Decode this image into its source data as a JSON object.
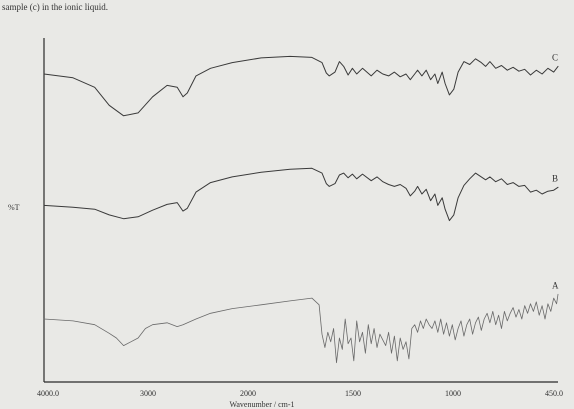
{
  "header_text": "sample (c) in the ionic liquid.",
  "chart_data": {
    "type": "line",
    "title": "",
    "xlabel": "Wavenumber / cm-1",
    "ylabel": "%T",
    "xlim": [
      4000,
      450
    ],
    "x_tick_labels": [
      "4000.0",
      "3000",
      "2000",
      "1500",
      "1000",
      "450.0"
    ],
    "grid": false,
    "series": [
      {
        "name": "C",
        "color": "#3a3a3a",
        "points": [
          [
            4000,
            0.8
          ],
          [
            3800,
            0.76
          ],
          [
            3650,
            0.66
          ],
          [
            3550,
            0.47
          ],
          [
            3450,
            0.36
          ],
          [
            3350,
            0.39
          ],
          [
            3250,
            0.56
          ],
          [
            3150,
            0.68
          ],
          [
            3080,
            0.66
          ],
          [
            3040,
            0.56
          ],
          [
            3010,
            0.6
          ],
          [
            2950,
            0.78
          ],
          [
            2850,
            0.86
          ],
          [
            2700,
            0.92
          ],
          [
            2500,
            0.97
          ],
          [
            2300,
            0.985
          ],
          [
            2150,
            0.975
          ],
          [
            2080,
            0.92
          ],
          [
            2050,
            0.81
          ],
          [
            2030,
            0.78
          ],
          [
            1990,
            0.82
          ],
          [
            1960,
            0.93
          ],
          [
            1930,
            0.88
          ],
          [
            1900,
            0.79
          ],
          [
            1870,
            0.86
          ],
          [
            1840,
            0.8
          ],
          [
            1800,
            0.86
          ],
          [
            1740,
            0.78
          ],
          [
            1700,
            0.84
          ],
          [
            1660,
            0.8
          ],
          [
            1620,
            0.78
          ],
          [
            1580,
            0.82
          ],
          [
            1540,
            0.77
          ],
          [
            1500,
            0.8
          ],
          [
            1470,
            0.74
          ],
          [
            1440,
            0.8
          ],
          [
            1420,
            0.84
          ],
          [
            1390,
            0.78
          ],
          [
            1360,
            0.84
          ],
          [
            1330,
            0.74
          ],
          [
            1300,
            0.8
          ],
          [
            1280,
            0.7
          ],
          [
            1250,
            0.82
          ],
          [
            1230,
            0.7
          ],
          [
            1200,
            0.58
          ],
          [
            1170,
            0.64
          ],
          [
            1140,
            0.82
          ],
          [
            1100,
            0.93
          ],
          [
            1060,
            0.9
          ],
          [
            1020,
            0.96
          ],
          [
            980,
            0.92
          ],
          [
            950,
            0.88
          ],
          [
            920,
            0.93
          ],
          [
            880,
            0.86
          ],
          [
            840,
            0.89
          ],
          [
            800,
            0.84
          ],
          [
            760,
            0.87
          ],
          [
            720,
            0.83
          ],
          [
            680,
            0.85
          ],
          [
            640,
            0.79
          ],
          [
            600,
            0.84
          ],
          [
            560,
            0.8
          ],
          [
            520,
            0.86
          ],
          [
            480,
            0.82
          ],
          [
            450,
            0.88
          ]
        ]
      },
      {
        "name": "B",
        "color": "#3a3a3a",
        "points": [
          [
            4000,
            0.28
          ],
          [
            3800,
            0.26
          ],
          [
            3650,
            0.24
          ],
          [
            3550,
            0.18
          ],
          [
            3450,
            0.14
          ],
          [
            3350,
            0.16
          ],
          [
            3250,
            0.23
          ],
          [
            3150,
            0.29
          ],
          [
            3080,
            0.31
          ],
          [
            3040,
            0.22
          ],
          [
            3010,
            0.25
          ],
          [
            2950,
            0.42
          ],
          [
            2850,
            0.52
          ],
          [
            2700,
            0.58
          ],
          [
            2500,
            0.63
          ],
          [
            2300,
            0.66
          ],
          [
            2150,
            0.67
          ],
          [
            2080,
            0.62
          ],
          [
            2050,
            0.51
          ],
          [
            2030,
            0.48
          ],
          [
            1990,
            0.51
          ],
          [
            1960,
            0.6
          ],
          [
            1930,
            0.62
          ],
          [
            1900,
            0.57
          ],
          [
            1870,
            0.61
          ],
          [
            1840,
            0.56
          ],
          [
            1800,
            0.61
          ],
          [
            1740,
            0.54
          ],
          [
            1700,
            0.58
          ],
          [
            1660,
            0.53
          ],
          [
            1620,
            0.5
          ],
          [
            1580,
            0.48
          ],
          [
            1540,
            0.5
          ],
          [
            1500,
            0.46
          ],
          [
            1470,
            0.38
          ],
          [
            1440,
            0.43
          ],
          [
            1420,
            0.48
          ],
          [
            1390,
            0.4
          ],
          [
            1360,
            0.45
          ],
          [
            1330,
            0.33
          ],
          [
            1300,
            0.4
          ],
          [
            1280,
            0.28
          ],
          [
            1250,
            0.36
          ],
          [
            1230,
            0.24
          ],
          [
            1200,
            0.12
          ],
          [
            1170,
            0.18
          ],
          [
            1140,
            0.36
          ],
          [
            1100,
            0.49
          ],
          [
            1060,
            0.56
          ],
          [
            1020,
            0.62
          ],
          [
            980,
            0.58
          ],
          [
            950,
            0.55
          ],
          [
            920,
            0.58
          ],
          [
            880,
            0.53
          ],
          [
            840,
            0.56
          ],
          [
            800,
            0.5
          ],
          [
            760,
            0.52
          ],
          [
            720,
            0.48
          ],
          [
            680,
            0.49
          ],
          [
            640,
            0.42
          ],
          [
            600,
            0.44
          ],
          [
            560,
            0.4
          ],
          [
            520,
            0.43
          ],
          [
            480,
            0.44
          ],
          [
            450,
            0.47
          ]
        ]
      },
      {
        "name": "A",
        "color": "#6a6a6a",
        "points": [
          [
            4000,
            -0.2
          ],
          [
            3800,
            -0.22
          ],
          [
            3650,
            -0.26
          ],
          [
            3550,
            -0.35
          ],
          [
            3500,
            -0.4
          ],
          [
            3450,
            -0.48
          ],
          [
            3400,
            -0.44
          ],
          [
            3350,
            -0.4
          ],
          [
            3300,
            -0.3
          ],
          [
            3250,
            -0.26
          ],
          [
            3150,
            -0.24
          ],
          [
            3080,
            -0.28
          ],
          [
            3040,
            -0.26
          ],
          [
            2950,
            -0.2
          ],
          [
            2850,
            -0.14
          ],
          [
            2700,
            -0.09
          ],
          [
            2500,
            -0.05
          ],
          [
            2300,
            -0.01
          ],
          [
            2150,
            0.02
          ],
          [
            2100,
            -0.05
          ],
          [
            2080,
            -0.36
          ],
          [
            2060,
            -0.5
          ],
          [
            2040,
            -0.34
          ],
          [
            2020,
            -0.44
          ],
          [
            2000,
            -0.3
          ],
          [
            1980,
            -0.66
          ],
          [
            1960,
            -0.4
          ],
          [
            1940,
            -0.52
          ],
          [
            1920,
            -0.2
          ],
          [
            1900,
            -0.46
          ],
          [
            1880,
            -0.4
          ],
          [
            1860,
            -0.64
          ],
          [
            1840,
            -0.22
          ],
          [
            1820,
            -0.44
          ],
          [
            1800,
            -0.34
          ],
          [
            1780,
            -0.56
          ],
          [
            1760,
            -0.26
          ],
          [
            1740,
            -0.46
          ],
          [
            1720,
            -0.3
          ],
          [
            1700,
            -0.5
          ],
          [
            1680,
            -0.36
          ],
          [
            1660,
            -0.42
          ],
          [
            1640,
            -0.48
          ],
          [
            1620,
            -0.34
          ],
          [
            1600,
            -0.56
          ],
          [
            1580,
            -0.38
          ],
          [
            1560,
            -0.64
          ],
          [
            1540,
            -0.4
          ],
          [
            1520,
            -0.52
          ],
          [
            1500,
            -0.44
          ],
          [
            1480,
            -0.62
          ],
          [
            1460,
            -0.3
          ],
          [
            1440,
            -0.26
          ],
          [
            1420,
            -0.34
          ],
          [
            1400,
            -0.22
          ],
          [
            1380,
            -0.3
          ],
          [
            1360,
            -0.2
          ],
          [
            1340,
            -0.26
          ],
          [
            1320,
            -0.3
          ],
          [
            1300,
            -0.22
          ],
          [
            1280,
            -0.34
          ],
          [
            1260,
            -0.2
          ],
          [
            1240,
            -0.36
          ],
          [
            1220,
            -0.24
          ],
          [
            1200,
            -0.38
          ],
          [
            1180,
            -0.26
          ],
          [
            1160,
            -0.42
          ],
          [
            1140,
            -0.3
          ],
          [
            1120,
            -0.22
          ],
          [
            1100,
            -0.38
          ],
          [
            1080,
            -0.26
          ],
          [
            1060,
            -0.2
          ],
          [
            1040,
            -0.36
          ],
          [
            1020,
            -0.24
          ],
          [
            1000,
            -0.18
          ],
          [
            980,
            -0.32
          ],
          [
            960,
            -0.2
          ],
          [
            940,
            -0.14
          ],
          [
            920,
            -0.24
          ],
          [
            900,
            -0.12
          ],
          [
            880,
            -0.26
          ],
          [
            860,
            -0.16
          ],
          [
            840,
            -0.3
          ],
          [
            820,
            -0.12
          ],
          [
            800,
            -0.22
          ],
          [
            780,
            -0.14
          ],
          [
            760,
            -0.08
          ],
          [
            740,
            -0.18
          ],
          [
            720,
            -0.1
          ],
          [
            700,
            -0.2
          ],
          [
            680,
            -0.06
          ],
          [
            660,
            -0.14
          ],
          [
            640,
            -0.04
          ],
          [
            620,
            -0.12
          ],
          [
            600,
            -0.02
          ],
          [
            580,
            -0.16
          ],
          [
            560,
            -0.06
          ],
          [
            540,
            -0.2
          ],
          [
            520,
            -0.04
          ],
          [
            500,
            -0.12
          ],
          [
            480,
            0.02
          ],
          [
            460,
            -0.04
          ],
          [
            450,
            0.06
          ]
        ]
      }
    ]
  }
}
